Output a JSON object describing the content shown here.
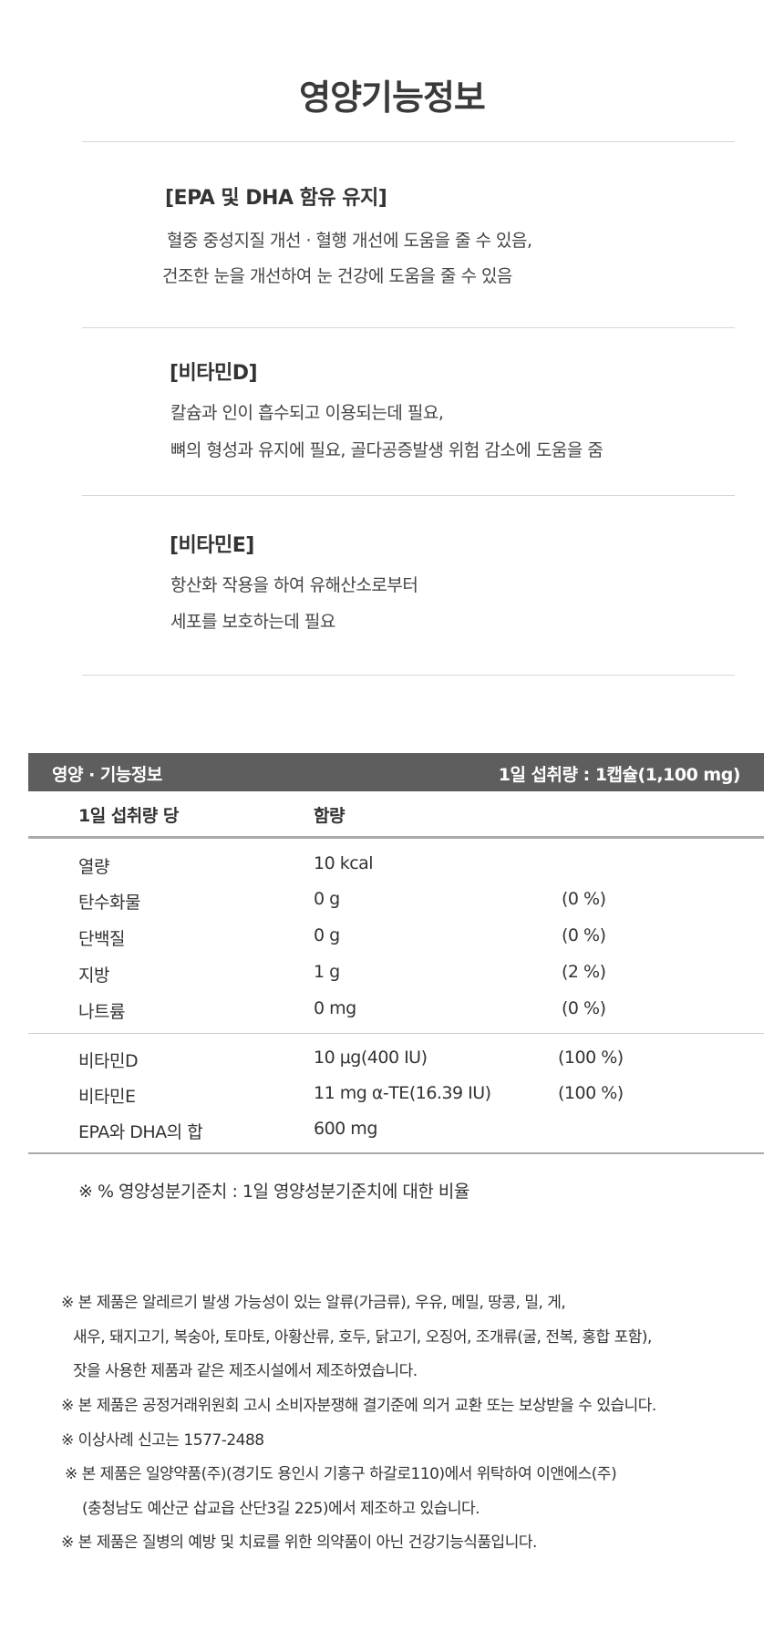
{
  "title": "영양기능정보",
  "sections": [
    {
      "heading": "[EPA 및 DHA 함유 유지]",
      "lines": [
        "혈중 중성지질 개선 · 혈행 개선에 도움을 줄 수 있음,",
        "건조한 눈을 개선하여 눈 건강에 도움을 줄 수 있음"
      ]
    },
    {
      "heading": "[비타민D]",
      "lines": [
        "칼슘과 인이 흡수되고 이용되는데 필요,",
        "뼈의 형성과 유지에 필요, 골다공증발생 위험 감소에 도움을 줌"
      ]
    },
    {
      "heading": "[비타민E]",
      "lines": [
        "항산화 작용을 하여 유해산소로부터",
        "세포를 보호하는데 필요"
      ]
    }
  ],
  "table": {
    "header_left": "영양 · 기능정보",
    "header_right": "1일 섭취량 : 1캡슐(1,100 mg)",
    "col_headers": [
      "1일 섭취량 당",
      "함량"
    ],
    "group1": [
      [
        "열량",
        "10 kcal",
        ""
      ],
      [
        "탄수화물",
        "0 g",
        "(0 %)"
      ],
      [
        "단백질",
        "0 g",
        "(0 %)"
      ],
      [
        "지방",
        "1 g",
        "(2 %)"
      ],
      [
        "나트륨",
        "0 mg",
        "(0 %)"
      ]
    ],
    "group2": [
      [
        "비타민D",
        "10 μg(400 IU)",
        "(100 %)"
      ],
      [
        "비타민E",
        "11 mg α-TE(16.39 IU)",
        "(100 %)"
      ],
      [
        "EPA와 DHA의 합",
        "600 mg",
        ""
      ]
    ],
    "footnote": "※ % 영양성분기준치 : 1일 영양성분기준치에 대한 비율"
  },
  "notes": [
    "※ 본 제품은 알레르기 발생 가능성이 있는 알류(가금류), 우유, 메밀, 땅콩, 밀, 게,",
    "새우, 돼지고기, 복숭아, 토마토, 아황산류, 호두, 닭고기, 오징어, 조개류(굴, 전복, 홍합 포함),",
    "잣을 사용한 제품과 같은 제조시설에서 제조하였습니다.",
    "※ 본 제품은 공정거래위원회 고시 소비자분쟁해 결기준에 의거 교환 또는 보상받을 수 있습니다.",
    "※ 이상사례 신고는 1577-2488",
    "※ 본 제품은 일양약품(주)(경기도 용인시 기흥구 하갈로110)에서 위탁하여 이앤에스(주)",
    "(충청남도 예산군 삽교읍 산단3길 225)에서 제조하고 있습니다.",
    "※ 본 제품은 질병의 예방 및 치료를 위한 의약품이 아닌 건강기능식품입니다."
  ]
}
